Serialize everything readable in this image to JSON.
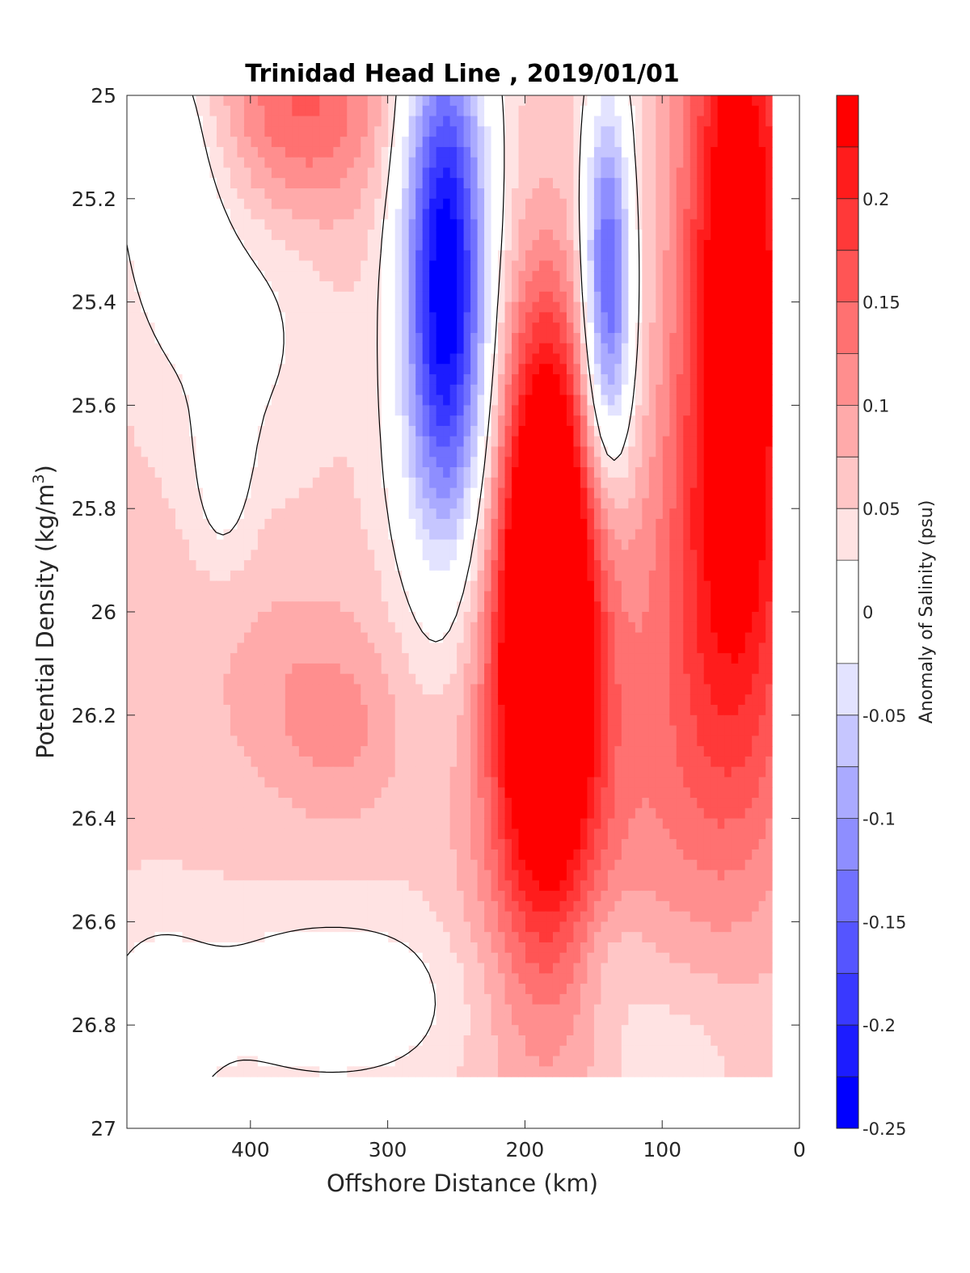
{
  "chart_data": {
    "type": "contour",
    "title": "Trinidad Head Line , 2019/01/01",
    "xlabel": "Offshore Distance (km)",
    "ylabel": "Potential Density (kg/m",
    "ylabel_superscript": "3",
    "ylabel_suffix": ")",
    "xlim": [
      490,
      0
    ],
    "x_reversed": true,
    "ylim": [
      25,
      27
    ],
    "y_reversed": true,
    "x_ticks": [
      "400",
      "300",
      "200",
      "100",
      "0"
    ],
    "x_tick_values": [
      400,
      300,
      200,
      100,
      0
    ],
    "y_ticks": [
      "25",
      "25.2",
      "25.4",
      "25.6",
      "25.8",
      "26",
      "26.2",
      "26.4",
      "26.6",
      "26.8",
      "27"
    ],
    "y_tick_values": [
      25,
      25.2,
      25.4,
      25.6,
      25.8,
      26,
      26.2,
      26.4,
      26.6,
      26.8,
      27
    ],
    "colorbar": {
      "label": "Anomaly of Salinity (psu)",
      "range": [
        -0.25,
        0.25
      ],
      "ticks": [
        "0.2",
        "0.15",
        "0.1",
        "0.05",
        "0",
        "-0.05",
        "-0.1",
        "-0.15",
        "-0.2",
        "-0.25"
      ],
      "tick_values": [
        0.2,
        0.15,
        0.1,
        0.05,
        0,
        -0.05,
        -0.1,
        -0.15,
        -0.2,
        -0.25
      ],
      "levels": [
        -0.25,
        -0.225,
        -0.2,
        -0.175,
        -0.15,
        -0.125,
        -0.1,
        -0.075,
        -0.05,
        -0.025,
        0.025,
        0.05,
        0.075,
        0.1,
        0.125,
        0.15,
        0.175,
        0.2,
        0.225,
        0.25
      ],
      "bands_top_to_bottom": [
        "#ff0000",
        "#ff1c1c",
        "#ff3939",
        "#ff5555",
        "#ff7171",
        "#ff8e8e",
        "#ffaaaa",
        "#ffc6c6",
        "#ffe3e3",
        "#ffffff",
        "#e3e3ff",
        "#c6c6ff",
        "#aaaaff",
        "#8e8eff",
        "#7171ff",
        "#5555ff",
        "#3939ff",
        "#1c1cff",
        "#0000ff"
      ]
    },
    "data_extent": {
      "x_min": 20,
      "x_max": 490,
      "y_min": 25,
      "y_max": 26.9
    },
    "blobs": [
      {
        "x": 455,
        "y": 25.18,
        "sx": 30,
        "sy": 0.2,
        "a": -0.06
      },
      {
        "x": 470,
        "y": 25.05,
        "sx": 22,
        "sy": 0.1,
        "a": -0.03
      },
      {
        "x": 405,
        "y": 25.45,
        "sx": 40,
        "sy": 0.2,
        "a": -0.04
      },
      {
        "x": 420,
        "y": 25.72,
        "sx": 14,
        "sy": 0.12,
        "a": -0.05
      },
      {
        "x": 258,
        "y": 25.35,
        "sx": 20,
        "sy": 0.28,
        "a": -0.2
      },
      {
        "x": 258,
        "y": 25.6,
        "sx": 26,
        "sy": 0.3,
        "a": -0.12
      },
      {
        "x": 262,
        "y": 25.05,
        "sx": 26,
        "sy": 0.2,
        "a": -0.08
      },
      {
        "x": 140,
        "y": 25.3,
        "sx": 12,
        "sy": 0.25,
        "a": -0.16
      },
      {
        "x": 140,
        "y": 25.5,
        "sx": 16,
        "sy": 0.22,
        "a": -0.08
      },
      {
        "x": 362,
        "y": 25.02,
        "sx": 45,
        "sy": 0.15,
        "a": 0.1
      },
      {
        "x": 185,
        "y": 26.0,
        "sx": 25,
        "sy": 0.33,
        "a": 0.3
      },
      {
        "x": 185,
        "y": 26.35,
        "sx": 38,
        "sy": 0.4,
        "a": 0.1
      },
      {
        "x": 185,
        "y": 25.55,
        "sx": 22,
        "sy": 0.2,
        "a": 0.06
      },
      {
        "x": 45,
        "y": 25.3,
        "sx": 28,
        "sy": 0.5,
        "a": 0.22
      },
      {
        "x": 55,
        "y": 26.0,
        "sx": 45,
        "sy": 0.35,
        "a": 0.1
      },
      {
        "x": 80,
        "y": 26.4,
        "sx": 55,
        "sy": 0.25,
        "a": 0.03
      },
      {
        "x": 365,
        "y": 26.15,
        "sx": 45,
        "sy": 0.15,
        "a": 0.04
      },
      {
        "x": 330,
        "y": 26.25,
        "sx": 30,
        "sy": 0.12,
        "a": 0.03
      },
      {
        "x": 340,
        "y": 26.75,
        "sx": 75,
        "sy": 0.12,
        "a": -0.06
      },
      {
        "x": 470,
        "y": 26.82,
        "sx": 30,
        "sy": 0.15,
        "a": -0.05
      },
      {
        "x": 100,
        "y": 26.85,
        "sx": 40,
        "sy": 0.12,
        "a": -0.03
      },
      {
        "x": 140,
        "y": 26.65,
        "sx": 20,
        "sy": 0.1,
        "a": -0.03
      }
    ]
  }
}
